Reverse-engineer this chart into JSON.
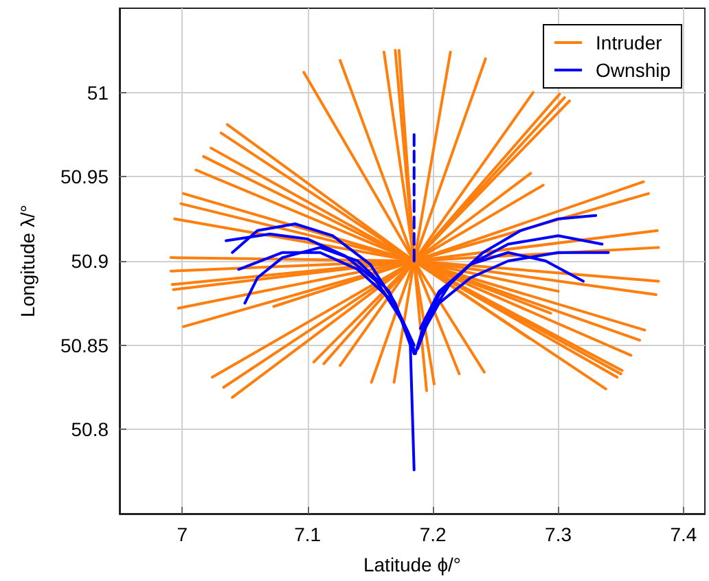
{
  "chart_data": {
    "type": "line",
    "xlabel": "Latitude ϕ/°",
    "ylabel": "Longitude λ/°",
    "xlim": [
      6.95,
      7.417
    ],
    "xticks": [
      7,
      7.1,
      7.2,
      7.3,
      7.4
    ],
    "ylim": [
      50.75,
      51.05
    ],
    "yticks": [
      50.8,
      50.85,
      50.9,
      50.95,
      51
    ],
    "grid": true,
    "legend": "top right",
    "marker": "none",
    "series": [
      {
        "name": "Intruder",
        "color": "#ff7f0e",
        "x": [
          7.097,
          7.185,
          7.195
        ],
        "values": [
          51.012,
          50.9,
          50.823
        ]
      },
      {
        "color": "#ff7f0e",
        "x": [
          7.161,
          7.185,
          7.221
        ],
        "values": [
          51.024,
          50.9,
          50.833
        ]
      },
      {
        "color": "#ff7f0e",
        "x": [
          7.17,
          7.185,
          7.241
        ],
        "values": [
          51.025,
          50.9,
          50.834
        ]
      },
      {
        "color": "#ff7f0e",
        "x": [
          7.173,
          7.185,
          7.201
        ],
        "values": [
          51.025,
          50.9,
          50.827
        ]
      },
      {
        "color": "#ff7f0e",
        "x": [
          7.126,
          7.185,
          7.277
        ],
        "values": [
          51.019,
          50.9,
          50.854
        ]
      },
      {
        "color": "#ff7f0e",
        "x": [
          7.214,
          7.185,
          7.169
        ],
        "values": [
          51.024,
          50.9,
          50.828
        ]
      },
      {
        "color": "#ff7f0e",
        "x": [
          7.242,
          7.185,
          7.151
        ],
        "values": [
          51.02,
          50.9,
          50.828
        ]
      },
      {
        "color": "#ff7f0e",
        "x": [
          7.28,
          7.185,
          7.126
        ],
        "values": [
          51.0,
          50.9,
          50.838
        ]
      },
      {
        "color": "#ff7f0e",
        "x": [
          7.301,
          7.185,
          7.113
        ],
        "values": [
          50.999,
          50.9,
          50.839
        ]
      },
      {
        "color": "#ff7f0e",
        "x": [
          7.305,
          7.185,
          7.105
        ],
        "values": [
          50.997,
          50.9,
          50.84
        ]
      },
      {
        "color": "#ff7f0e",
        "x": [
          7.309,
          7.185,
          7.073
        ],
        "values": [
          50.995,
          50.9,
          50.873
        ]
      },
      {
        "color": "#ff7f0e",
        "x": [
          7.278,
          7.185,
          7.04
        ],
        "values": [
          50.952,
          50.9,
          50.819
        ]
      },
      {
        "color": "#ff7f0e",
        "x": [
          7.288,
          7.185,
          7.033
        ],
        "values": [
          50.945,
          50.9,
          50.825
        ]
      },
      {
        "color": "#ff7f0e",
        "x": [
          7.368,
          7.185,
          7.024
        ],
        "values": [
          50.947,
          50.9,
          50.831
        ]
      },
      {
        "color": "#ff7f0e",
        "x": [
          7.372,
          7.185,
          7.001
        ],
        "values": [
          50.94,
          50.9,
          50.861
        ]
      },
      {
        "color": "#ff7f0e",
        "x": [
          7.379,
          7.185,
          6.997
        ],
        "values": [
          50.918,
          50.9,
          50.872
        ]
      },
      {
        "color": "#ff7f0e",
        "x": [
          7.38,
          7.185,
          6.993
        ],
        "values": [
          50.908,
          50.9,
          50.883
        ]
      },
      {
        "color": "#ff7f0e",
        "x": [
          7.036,
          7.185,
          7.338
        ],
        "values": [
          50.981,
          50.9,
          50.824
        ]
      },
      {
        "color": "#ff7f0e",
        "x": [
          7.031,
          7.185,
          7.347
        ],
        "values": [
          50.976,
          50.9,
          50.831
        ]
      },
      {
        "color": "#ff7f0e",
        "x": [
          7.023,
          7.185,
          7.35
        ],
        "values": [
          50.967,
          50.9,
          50.833
        ]
      },
      {
        "color": "#ff7f0e",
        "x": [
          7.017,
          7.185,
          7.351
        ],
        "values": [
          50.962,
          50.9,
          50.835
        ]
      },
      {
        "color": "#ff7f0e",
        "x": [
          7.011,
          7.185,
          7.358
        ],
        "values": [
          50.954,
          50.9,
          50.844
        ]
      },
      {
        "color": "#ff7f0e",
        "x": [
          7.001,
          7.185,
          7.365
        ],
        "values": [
          50.94,
          50.9,
          50.853
        ]
      },
      {
        "color": "#ff7f0e",
        "x": [
          6.999,
          7.185,
          7.369
        ],
        "values": [
          50.934,
          50.9,
          50.859
        ]
      },
      {
        "color": "#ff7f0e",
        "x": [
          6.994,
          7.185,
          7.294
        ],
        "values": [
          50.925,
          50.9,
          50.869
        ]
      },
      {
        "color": "#ff7f0e",
        "x": [
          6.991,
          7.185,
          7.38
        ],
        "values": [
          50.902,
          50.9,
          50.888
        ]
      },
      {
        "color": "#ff7f0e",
        "x": [
          6.991,
          7.185,
          7.378
        ],
        "values": [
          50.894,
          50.9,
          50.88
        ]
      },
      {
        "color": "#ff7f0e",
        "x": [
          6.992,
          7.185,
          7.3
        ],
        "values": [
          50.886,
          50.9,
          50.882
        ]
      },
      {
        "name": "Ownship",
        "color": "#0000ff",
        "x": [
          7.04,
          7.06,
          7.09,
          7.12,
          7.15,
          7.17,
          7.182,
          7.185
        ],
        "values": [
          50.905,
          50.918,
          50.922,
          50.915,
          50.898,
          50.875,
          50.85,
          50.776
        ]
      },
      {
        "color": "#0000ff",
        "x": [
          7.035,
          7.07,
          7.1,
          7.13,
          7.155,
          7.175,
          7.185
        ],
        "values": [
          50.912,
          50.916,
          50.913,
          50.903,
          50.888,
          50.865,
          50.845
        ]
      },
      {
        "color": "#0000ff",
        "x": [
          7.045,
          7.08,
          7.11,
          7.14,
          7.165,
          7.18,
          7.186
        ],
        "values": [
          50.895,
          50.905,
          50.905,
          50.895,
          50.878,
          50.858,
          50.845
        ]
      },
      {
        "color": "#0000ff",
        "x": [
          7.05,
          7.06,
          7.08,
          7.11,
          7.14,
          7.165,
          7.185
        ],
        "values": [
          50.875,
          50.89,
          50.902,
          50.908,
          50.9,
          50.882,
          50.85
        ]
      },
      {
        "color": "#0000ff",
        "x": [
          7.33,
          7.3,
          7.27,
          7.24,
          7.215,
          7.198,
          7.188
        ],
        "values": [
          50.927,
          50.925,
          50.918,
          50.905,
          50.888,
          50.868,
          50.848
        ]
      },
      {
        "color": "#0000ff",
        "x": [
          7.335,
          7.3,
          7.26,
          7.23,
          7.205,
          7.192,
          7.186
        ],
        "values": [
          50.91,
          50.915,
          50.91,
          50.898,
          50.88,
          50.86,
          50.845
        ]
      },
      {
        "color": "#0000ff",
        "x": [
          7.34,
          7.3,
          7.26,
          7.23,
          7.205,
          7.19
        ],
        "values": [
          50.905,
          50.905,
          50.9,
          50.89,
          50.875,
          50.855
        ]
      },
      {
        "color": "#0000ff",
        "x": [
          7.32,
          7.29,
          7.26,
          7.23,
          7.205,
          7.19
        ],
        "values": [
          50.888,
          50.9,
          50.905,
          50.898,
          50.882,
          50.86
        ]
      },
      {
        "color": "#0000ff",
        "line_style": "dashed",
        "x": [
          7.185,
          7.185
        ],
        "values": [
          50.9,
          50.977
        ]
      }
    ]
  }
}
